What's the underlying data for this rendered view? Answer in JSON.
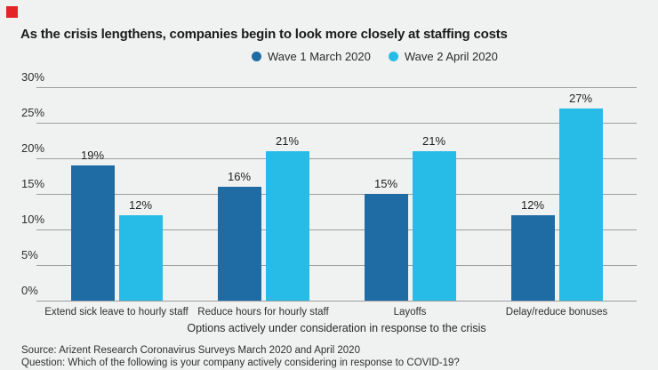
{
  "page": {
    "title": "As the crisis lengthens, companies begin to look more closely at staffing costs",
    "source_line": "Source: Arizent Research Coronavirus Surveys March 2020 and April 2020",
    "question_line": "Question: Which of the following is your company actively considering in response to COVID-19?"
  },
  "colors": {
    "background": "#f0f1f1",
    "wave1_blue": "#1f6ba3",
    "wave2_cyan": "#27bce8",
    "gridline": "#9c9ea0",
    "title_text": "#1b1b1b",
    "marker_red": "#e42527"
  },
  "chart_data": {
    "type": "bar",
    "title": "As the crisis lengthens, companies begin to look more closely at staffing costs",
    "categories": [
      "Extend sick leave to hourly staff",
      "Reduce hours for hourly staff",
      "Layoffs",
      "Delay/reduce bonuses"
    ],
    "series": [
      {
        "name": "Wave 1 March 2020",
        "color": "#1f6ba3",
        "values": [
          19,
          16,
          15,
          12
        ]
      },
      {
        "name": "Wave 2 April 2020",
        "color": "#27bce8",
        "values": [
          12,
          21,
          21,
          27
        ]
      }
    ],
    "value_labels": [
      [
        "19%",
        "16%",
        "15%",
        "12%"
      ],
      [
        "12%",
        "21%",
        "21%",
        "27%"
      ]
    ],
    "xlabel": "Options actively under consideration in response to the crisis",
    "ylabel": "",
    "ylim": [
      0,
      30
    ],
    "yticks": [
      0,
      5,
      10,
      15,
      20,
      25,
      30
    ],
    "ytick_labels": [
      "0%",
      "5%",
      "10%",
      "15%",
      "20%",
      "25%",
      "30%"
    ],
    "grid": true,
    "legend_position": "top-center"
  }
}
